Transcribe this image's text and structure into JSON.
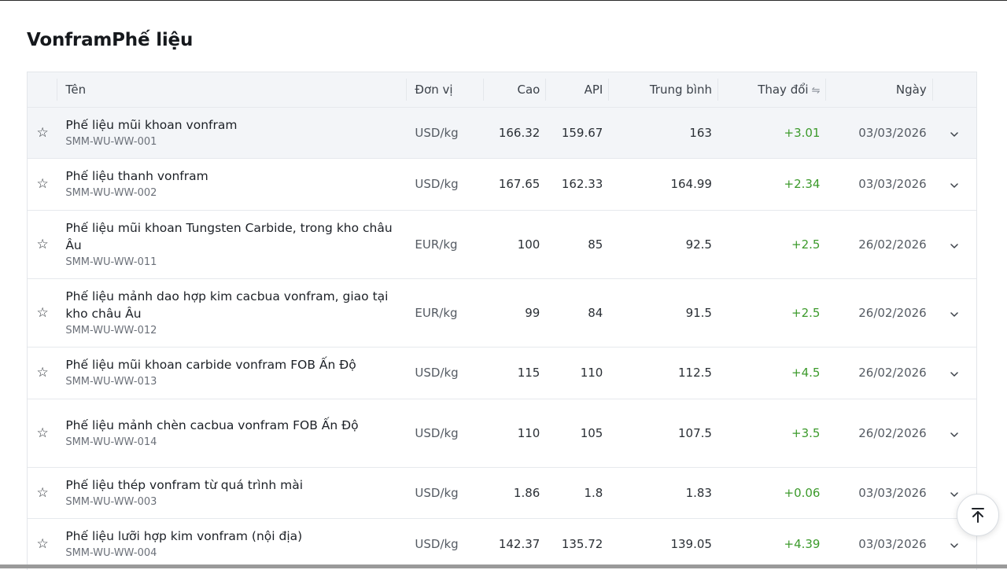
{
  "page": {
    "title": "VonframPhế liệu"
  },
  "table": {
    "headers": {
      "name": "Tên",
      "unit": "Đơn vị",
      "high": "Cao",
      "api": "API",
      "avg": "Trung bình",
      "change": "Thay đổi",
      "date": "Ngày"
    },
    "rows": [
      {
        "name": "Phế liệu mũi khoan vonfram",
        "code": "SMM-WU-WW-001",
        "unit": "USD/kg",
        "high": "166.32",
        "api": "159.67",
        "avg": "163",
        "change": "+3.01",
        "date": "03/03/2026"
      },
      {
        "name": "Phế liệu thanh vonfram",
        "code": "SMM-WU-WW-002",
        "unit": "USD/kg",
        "high": "167.65",
        "api": "162.33",
        "avg": "164.99",
        "change": "+2.34",
        "date": "03/03/2026"
      },
      {
        "name": "Phế liệu mũi khoan Tungsten Carbide, trong kho châu Âu",
        "code": "SMM-WU-WW-011",
        "unit": "EUR/kg",
        "high": "100",
        "api": "85",
        "avg": "92.5",
        "change": "+2.5",
        "date": "26/02/2026"
      },
      {
        "name": "Phế liệu mảnh dao hợp kim cacbua vonfram, giao tại kho châu Âu",
        "code": "SMM-WU-WW-012",
        "unit": "EUR/kg",
        "high": "99",
        "api": "84",
        "avg": "91.5",
        "change": "+2.5",
        "date": "26/02/2026"
      },
      {
        "name": "Phế liệu mũi khoan carbide vonfram FOB Ấn Độ",
        "code": "SMM-WU-WW-013",
        "unit": "USD/kg",
        "high": "115",
        "api": "110",
        "avg": "112.5",
        "change": "+4.5",
        "date": "26/02/2026"
      },
      {
        "name": "Phế liệu mảnh chèn cacbua vonfram FOB Ấn Độ",
        "code": "SMM-WU-WW-014",
        "unit": "USD/kg",
        "high": "110",
        "api": "105",
        "avg": "107.5",
        "change": "+3.5",
        "date": "26/02/2026"
      },
      {
        "name": "Phế liệu thép vonfram từ quá trình mài",
        "code": "SMM-WU-WW-003",
        "unit": "USD/kg",
        "high": "1.86",
        "api": "1.8",
        "avg": "1.83",
        "change": "+0.06",
        "date": "03/03/2026"
      },
      {
        "name": "Phế liệu lưỡi hợp kim vonfram (nội địa)",
        "code": "SMM-WU-WW-004",
        "unit": "USD/kg",
        "high": "142.37",
        "api": "135.72",
        "avg": "139.05",
        "change": "+4.39",
        "date": "03/03/2026"
      }
    ]
  },
  "icons": {
    "star": "star-outline-icon",
    "expand": "chevron-down-icon",
    "sort": "sort-swap-icon",
    "scroll_top": "arrow-up-to-top-icon"
  },
  "colors": {
    "change_positive": "#3c9a2b",
    "header_bg": "#f3f5f8"
  }
}
